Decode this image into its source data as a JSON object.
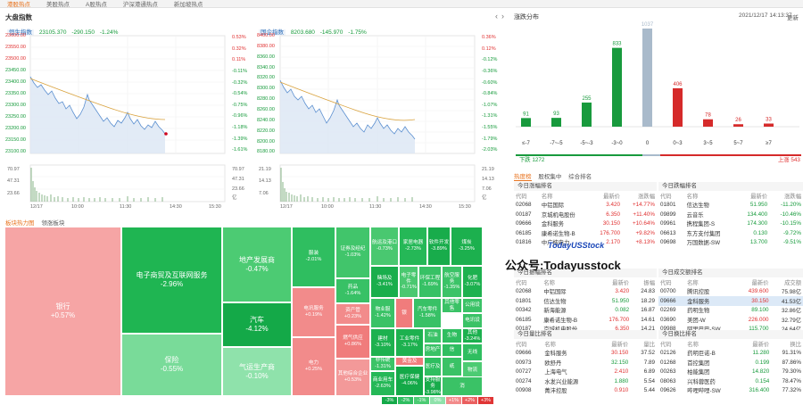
{
  "nav": [
    "港股热点",
    "美股热点",
    "A股热点",
    "沪深港通热点",
    "新加坡热点"
  ],
  "page_title": "大盘指数",
  "hsi": {
    "name": "恒生指数",
    "price": "23105.370",
    "change": "-290.150",
    "pct": "-1.24%",
    "y_left": [
      "23600.00",
      "23550.00",
      "23500.00",
      "23450.00",
      "23400.00",
      "23350.00",
      "23300.00",
      "23250.00",
      "23200.00",
      "23150.00",
      "23100.00"
    ],
    "y_right": [
      "0.53%",
      "0.32%",
      "0.11%",
      "-0.11%",
      "-0.32%",
      "-0.54%",
      "-0.75%",
      "-0.96%",
      "-1.18%",
      "-1.39%",
      "-1.61%"
    ],
    "vol_left": [
      "70.97",
      "47.31",
      "23.66"
    ],
    "vol_right": [
      "70.97",
      "47.31",
      "23.66",
      "亿"
    ],
    "x": [
      "12/17",
      "10:00",
      "11:30",
      "14:30",
      "15:30"
    ]
  },
  "hscei": {
    "name": "国企指数",
    "price": "8203.680",
    "change": "-145.970",
    "pct": "-1.75%",
    "y_left": [
      "8400.00",
      "8380.00",
      "8360.00",
      "8340.00",
      "8320.00",
      "8300.00",
      "8280.00",
      "8260.00",
      "8240.00",
      "8220.00",
      "8200.00",
      "8180.00"
    ],
    "y_right": [
      "0.36%",
      "0.12%",
      "-0.12%",
      "-0.36%",
      "-0.60%",
      "-0.84%",
      "-1.07%",
      "-1.31%",
      "-1.55%",
      "-1.79%",
      "-2.03%"
    ],
    "vol_left": [
      "21.19",
      "14.13",
      "7.06"
    ],
    "vol_right": [
      "21.19",
      "14.13",
      "7.06",
      "亿"
    ],
    "x": [
      "12/17",
      "10:00",
      "11:30",
      "14:30",
      "15:30"
    ]
  },
  "heatmap": {
    "tabs": [
      "板块热力图",
      "领涨板块"
    ],
    "cells": [
      {
        "name": "银行",
        "pct": "+0.57%",
        "color": "#f6a5a5"
      },
      {
        "name": "电子商贸及互联网服务",
        "pct": "-2.96%",
        "color": "#1fb552"
      },
      {
        "name": "保险",
        "pct": "-0.55%",
        "color": "#79db99"
      },
      {
        "name": "地产发展商",
        "pct": "-0.47%",
        "color": "#4ccb73"
      },
      {
        "name": "汽车",
        "pct": "-4.12%",
        "color": "#14a948"
      },
      {
        "name": "气运生产商",
        "pct": "-0.10%",
        "color": "#8fe2ab"
      },
      {
        "name": "服装",
        "pct": "-2.01%",
        "color": "#2fbe60"
      },
      {
        "name": "电讯服务",
        "pct": "+0.19%",
        "color": "#f28b8b"
      },
      {
        "name": "电力",
        "pct": "+0.25%",
        "color": "#f28b8b"
      },
      {
        "name": "证券及经纪",
        "pct": "-1.03%",
        "color": "#41c56b"
      },
      {
        "name": "航运及港口",
        "pct": "-0.73%",
        "color": "#49c870"
      },
      {
        "name": "家居电器",
        "pct": "-2.73%",
        "color": "#25b857"
      },
      {
        "name": "软件开发",
        "pct": "-3.89%",
        "color": "#18ac4b"
      },
      {
        "name": "煤炭",
        "pct": "-3.25%",
        "color": "#1cb04e"
      },
      {
        "name": "赌场及",
        "pct": "-3.41%",
        "color": "#19ae4c"
      },
      {
        "name": "电子零件",
        "pct": "-0.71%",
        "color": "#4ac870"
      },
      {
        "name": "环保工程",
        "pct": "-1.69%",
        "color": "#37c165"
      },
      {
        "name": "航空服务",
        "pct": "-1.35%",
        "color": "#3bc367"
      },
      {
        "name": "化肥",
        "pct": "-3.07%",
        "color": "#1db14f"
      },
      {
        "name": "药品",
        "pct": "-1.64%",
        "color": "#38c166"
      },
      {
        "name": "资产管",
        "pct": "+0.23%",
        "color": "#f28b8b"
      },
      {
        "name": "燃气供应",
        "pct": "+0.86%",
        "color": "#f07c7c"
      },
      {
        "name": "物业服",
        "pct": "-1.42%",
        "color": "#3ac266"
      },
      {
        "name": "银",
        "pct": "",
        "color": "#f07c7c"
      },
      {
        "name": "汽车零件",
        "pct": "-1.58%",
        "color": "#38c166"
      },
      {
        "name": "其他零售",
        "pct": "",
        "color": "#3ac266"
      },
      {
        "name": "公用设",
        "pct": "",
        "color": "#3ac266"
      },
      {
        "name": "电讯设",
        "pct": "",
        "color": "#3ac266"
      },
      {
        "name": "建材",
        "pct": "-3.10%",
        "color": "#1db14f"
      },
      {
        "name": "工业零件",
        "pct": "-3.17%",
        "color": "#1db14f"
      },
      {
        "name": "石油",
        "pct": "",
        "color": "#3ac266"
      },
      {
        "name": "生物",
        "pct": "",
        "color": "#2fbe60"
      },
      {
        "name": "其他综合企业",
        "pct": "+0.53%",
        "color": "#f39999"
      },
      {
        "name": "非传统",
        "pct": "-1.31%",
        "color": "#3bc367"
      },
      {
        "name": "商业用车",
        "pct": "-2.63%",
        "color": "#25b857"
      },
      {
        "name": "黄金及",
        "pct": "",
        "color": "#f07c7c"
      },
      {
        "name": "医疗保健",
        "pct": "-4.06%",
        "color": "#14a948"
      },
      {
        "name": "房地产",
        "pct": "",
        "color": "#3ac266"
      },
      {
        "name": "医疗及",
        "pct": "",
        "color": "#2fbe60"
      },
      {
        "name": "信",
        "pct": "",
        "color": "#2fbe60"
      },
      {
        "name": "其他",
        "pct": "-3.24%",
        "color": "#1cb04e"
      },
      {
        "name": "支持服务",
        "pct": "-3.98%",
        "color": "#18ac4b"
      },
      {
        "name": "纸",
        "pct": "",
        "color": "#3ac266"
      },
      {
        "name": "无线",
        "pct": "",
        "color": "#2fbe60"
      },
      {
        "name": "物流",
        "pct": "",
        "color": "#4ccb73"
      },
      {
        "name": "消",
        "pct": "",
        "color": "#3ac266"
      }
    ],
    "legend": [
      {
        "t": "-3%",
        "c": "#14a948"
      },
      {
        "t": "-2%",
        "c": "#2fbe60"
      },
      {
        "t": "-1%",
        "c": "#4ccb73"
      },
      {
        "t": "0%",
        "c": "#8fe2ab"
      },
      {
        "t": "+1%",
        "c": "#f28b8b"
      },
      {
        "t": "+2%",
        "c": "#ea5f5f"
      },
      {
        "t": "+3%",
        "c": "#e03535"
      }
    ]
  },
  "distribution": {
    "title": "涨跌分布",
    "datetime": "2021/12/17 14:13:37",
    "refresh": "更新",
    "chart_data": {
      "type": "bar",
      "categories": [
        "≤-7",
        "-7~-5",
        "-5~-3",
        "-3~0",
        "0",
        "0~3",
        "3~5",
        "5~7",
        "≥7"
      ],
      "values": [
        91,
        93,
        255,
        833,
        1037,
        406,
        78,
        26,
        33
      ],
      "colors": [
        "#189a3d",
        "#189a3d",
        "#189a3d",
        "#189a3d",
        "#a9bacb",
        "#d52a2a",
        "#d52a2a",
        "#d52a2a",
        "#d52a2a"
      ]
    },
    "down": "下跌 1272",
    "up": "上涨 543"
  },
  "hot": {
    "tabs": [
      "热度榜",
      "股权集中",
      "综合排名"
    ],
    "gainers": {
      "title": "今日涨幅排名",
      "cols": [
        "代码",
        "名称",
        "最新价",
        "涨跌幅"
      ],
      "rows": [
        [
          "02068",
          "中铝国际",
          "3.420",
          "+14.77%"
        ],
        [
          "00187",
          "京城机电股份",
          "6.350",
          "+11.40%"
        ],
        [
          "09666",
          "金科服务",
          "30.150",
          "+10.64%"
        ],
        [
          "06185",
          "康希诺生物-B",
          "176.700",
          "+9.82%"
        ],
        [
          "01816",
          "中广核电力",
          "2.170",
          "+8.13%"
        ]
      ]
    },
    "losers": {
      "title": "今日跌幅排名",
      "cols": [
        "代码",
        "名称",
        "最新价",
        "涨跌幅"
      ],
      "rows": [
        [
          "01801",
          "信达生物",
          "51.950",
          "-11.20%"
        ],
        [
          "09899",
          "云音乐",
          "134.400",
          "-10.46%"
        ],
        [
          "09961",
          "携程集团-S",
          "174.300",
          "-10.15%"
        ],
        [
          "06613",
          "东方支付集团",
          "0.130",
          "-9.72%"
        ],
        [
          "09698",
          "万国数据-SW",
          "13.700",
          "-9.51%"
        ]
      ]
    },
    "turnover": {
      "title": "今日成交额排名",
      "cols": [
        "代码",
        "名称",
        "最新价",
        "成交额"
      ],
      "rows": [
        [
          "00700",
          "腾讯控股",
          "439.600",
          "75.98亿"
        ],
        [
          "09666",
          "金科服务",
          "30.150",
          "41.53亿"
        ],
        [
          "02269",
          "药明生物",
          "89.100",
          "32.86亿"
        ],
        [
          "03690",
          "美团-W",
          "226.000",
          "32.79亿"
        ],
        [
          "09988",
          "阿里巴巴-SW",
          "115.700",
          "24.64亿"
        ]
      ]
    },
    "amplitude": {
      "title": "今日振幅排名",
      "cols": [
        "代码",
        "名称",
        "最新价",
        "振幅"
      ],
      "rows": [
        [
          "02068",
          "中铝国际",
          "3.420",
          "24.83"
        ],
        [
          "01801",
          "信达生物",
          "51.950",
          "18.29"
        ],
        [
          "00342",
          "新海能源",
          "0.082",
          "16.87"
        ],
        [
          "06185",
          "康希诺生物-B",
          "176.700",
          "14.61"
        ],
        [
          "00187",
          "京城机电股份",
          "6.350",
          "14.21"
        ]
      ]
    },
    "volratio": {
      "title": "今日量比排名",
      "cols": [
        "代码",
        "名称",
        "最新价",
        "量比"
      ],
      "rows": [
        [
          "09666",
          "金科服务",
          "30.150",
          "37.52"
        ],
        [
          "00973",
          "欧舒丹",
          "32.150",
          "7.89"
        ],
        [
          "00727",
          "上海电气",
          "2.410",
          "6.89"
        ],
        [
          "00274",
          "水发兴业能源",
          "1.880",
          "5.54"
        ],
        [
          "00908",
          "菁沣控股",
          "0.910",
          "5.44"
        ]
      ]
    },
    "turnrate": {
      "title": "今日换比排名",
      "cols": [
        "代码",
        "名称",
        "最新价",
        "换比"
      ],
      "rows": [
        [
          "02126",
          "药明巨诺-B",
          "11.280",
          "91.31%"
        ],
        [
          "01268",
          "首控集团",
          "0.199",
          "87.86%"
        ],
        [
          "00263",
          "柏能集团",
          "14.820",
          "79.30%"
        ],
        [
          "08063",
          "兴科蓉医药",
          "0.154",
          "78.47%"
        ],
        [
          "09626",
          "哔哩哔哩-SW",
          "316.400",
          "77.32%"
        ]
      ]
    }
  },
  "watermark": "公众号:Todayusstock",
  "watermark_en": "TodayUSStock"
}
